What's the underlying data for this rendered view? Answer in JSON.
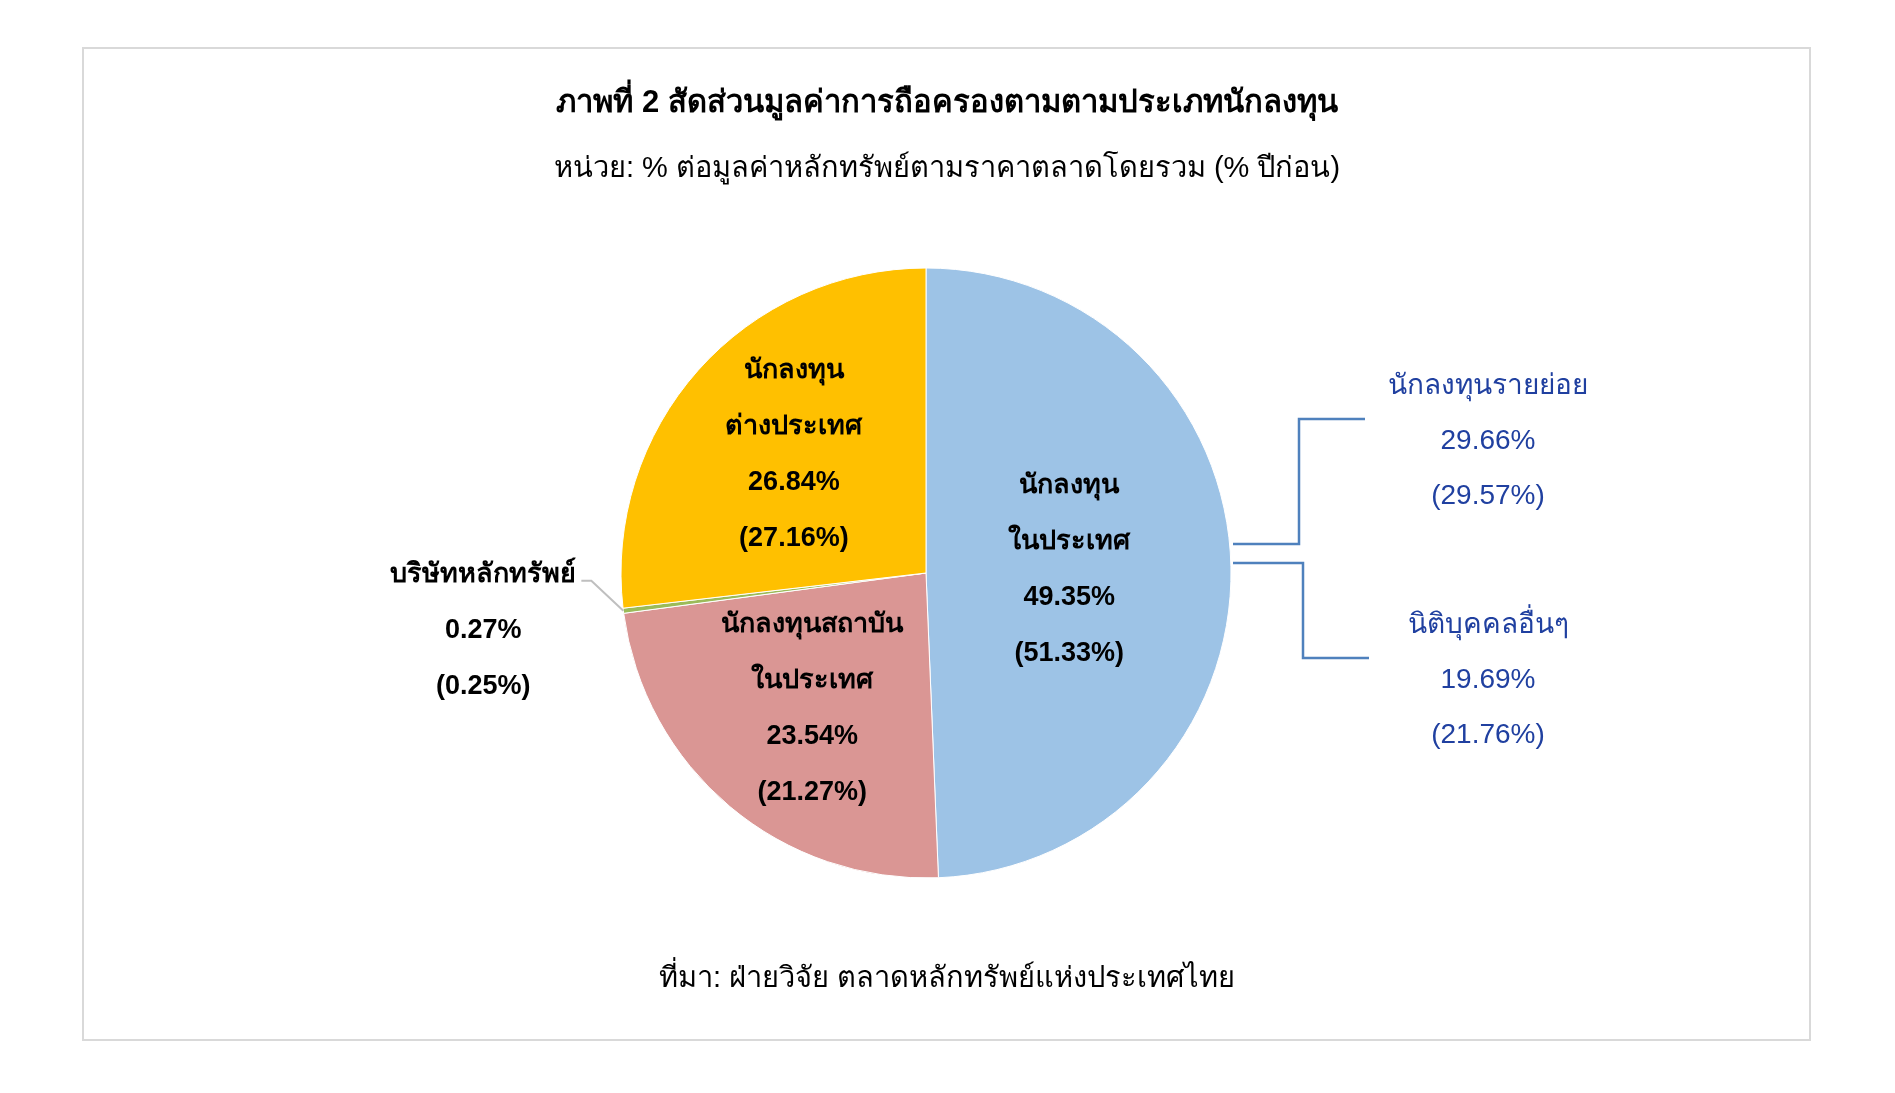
{
  "chart_data": {
    "type": "pie",
    "title": "ภาพที่ 2 สัดส่วนมูลค่าการถือครองตามตามประเภทนักลงทุน",
    "subtitle": "หน่วย: % ต่อมูลค่าหลักทรัพย์ตามราคาตลาดโดยรวม (% ปีก่อน)",
    "categories": [
      "นักลงทุน\nในประเทศ",
      "นักลงทุนสถาบัน\nในประเทศ",
      "บริษัทหลักทรัพย์",
      "นักลงทุน\nต่างประเทศ"
    ],
    "values": [
      49.35,
      23.54,
      0.27,
      26.84
    ],
    "colors": [
      "#9dc3e6",
      "#da9694",
      "#9bbb59",
      "#ffc000"
    ],
    "value_labels": [
      "49.35%\n(51.33%)",
      "23.54%\n(21.27%)",
      "0.27%\n(0.25%)",
      "26.84%\n(27.16%)"
    ],
    "annotations": [
      "นักลงทุนรายย่อย\n29.66%\n(29.57%)",
      "นิติบุคคลอื่นๆ\n19.69%\n(21.76%)",
      "ที่มา: ฝ่ายวิจัย ตลาดหลักทรัพย์แห่งประเทศไทย"
    ]
  }
}
